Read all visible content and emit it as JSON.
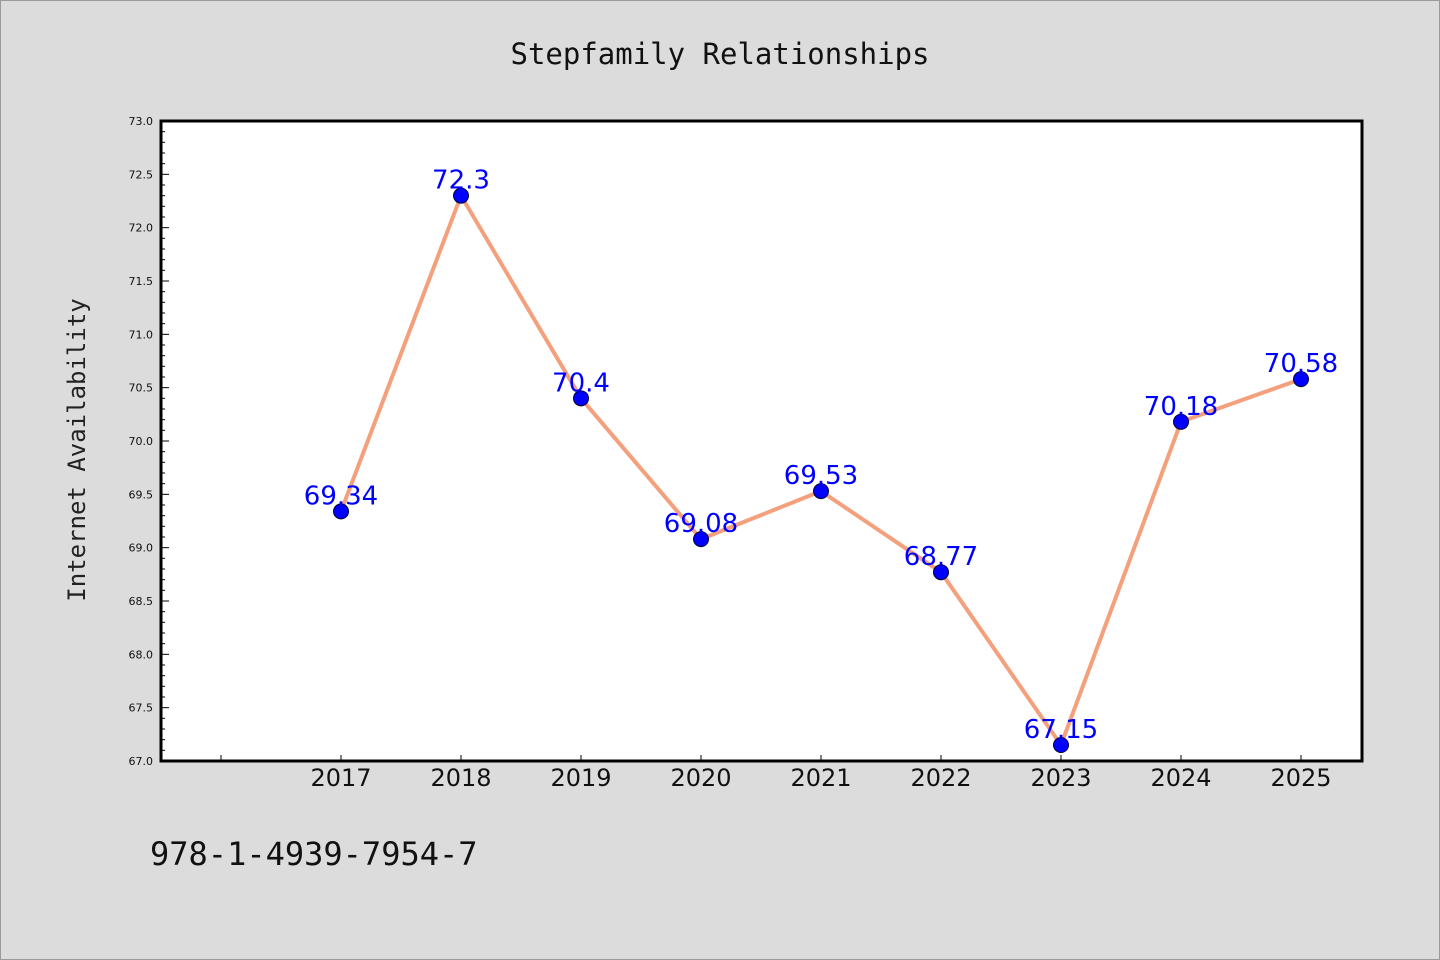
{
  "chart_data": {
    "type": "line",
    "title": "Stepfamily Relationships",
    "ylabel": "Internet Availability",
    "xlabel": "",
    "categories": [
      "2017",
      "2018",
      "2019",
      "2020",
      "2021",
      "2022",
      "2023",
      "2024",
      "2025"
    ],
    "series": [
      {
        "values": [
          69.34,
          72.3,
          70.4,
          69.08,
          69.53,
          68.77,
          67.15,
          70.18,
          70.58
        ]
      }
    ],
    "data_labels": [
      "69.34",
      "72.3",
      "70.4",
      "69.08",
      "69.53",
      "68.77",
      "67.15",
      "70.18",
      "70.58"
    ],
    "ylim": [
      67.0,
      73.0
    ],
    "yticks": [
      "67.0",
      "67.5",
      "68.0",
      "68.5",
      "69.0",
      "69.5",
      "70.0",
      "70.5",
      "71.0",
      "71.5",
      "72.0",
      "72.5",
      "73.0"
    ],
    "grid": false,
    "legend": "none"
  },
  "footer": {
    "code": "978-1-4939-7954-7"
  },
  "colors": {
    "line": "#f4a07c",
    "marker": "#0000ff",
    "data_label": "#0000ff",
    "background": "#dcdcdc",
    "plot_background": "#ffffff"
  }
}
